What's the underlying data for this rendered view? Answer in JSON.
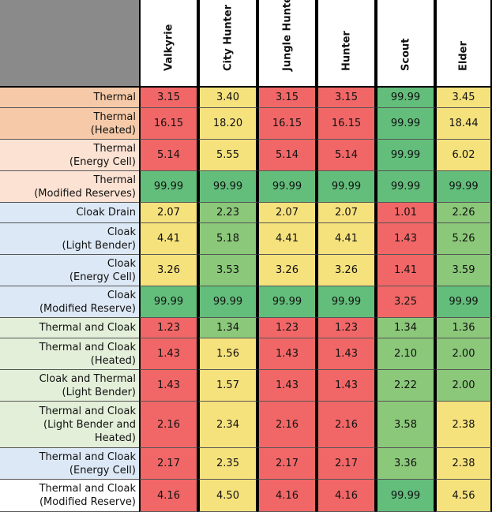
{
  "chart_data": {
    "type": "table",
    "columns": [
      "Valkyrie",
      "City Hunter",
      "Jungle Hunter",
      "Hunter",
      "Scout",
      "Elder"
    ],
    "rows": [
      {
        "label": [
          "Thermal"
        ],
        "values": [
          "3.15",
          "3.40",
          "3.15",
          "3.15",
          "99.99",
          "3.45"
        ],
        "group": "thermal"
      },
      {
        "label": [
          "Thermal",
          "(Heated)"
        ],
        "values": [
          "16.15",
          "18.20",
          "16.15",
          "16.15",
          "99.99",
          "18.44"
        ],
        "group": "thermal"
      },
      {
        "label": [
          "Thermal",
          "(Energy Cell)"
        ],
        "values": [
          "5.14",
          "5.55",
          "5.14",
          "5.14",
          "99.99",
          "6.02"
        ],
        "group": "thermal-light"
      },
      {
        "label": [
          "Thermal",
          "(Modified Reserves)"
        ],
        "values": [
          "99.99",
          "99.99",
          "99.99",
          "99.99",
          "99.99",
          "99.99"
        ],
        "group": "thermal-light"
      },
      {
        "label": [
          "Cloak Drain"
        ],
        "values": [
          "2.07",
          "2.23",
          "2.07",
          "2.07",
          "1.01",
          "2.26"
        ],
        "group": "cloak"
      },
      {
        "label": [
          "Cloak",
          "(Light Bender)"
        ],
        "values": [
          "4.41",
          "5.18",
          "4.41",
          "4.41",
          "1.43",
          "5.26"
        ],
        "group": "cloak"
      },
      {
        "label": [
          "Cloak",
          "(Energy Cell)"
        ],
        "values": [
          "3.26",
          "3.53",
          "3.26",
          "3.26",
          "1.41",
          "3.59"
        ],
        "group": "cloak"
      },
      {
        "label": [
          "Cloak",
          "(Modified Reserve)"
        ],
        "values": [
          "99.99",
          "99.99",
          "99.99",
          "99.99",
          "3.25",
          "99.99"
        ],
        "group": "cloak"
      },
      {
        "label": [
          "Thermal and Cloak"
        ],
        "values": [
          "1.23",
          "1.34",
          "1.23",
          "1.23",
          "1.34",
          "1.36"
        ],
        "group": "both"
      },
      {
        "label": [
          "Thermal and Cloak",
          "(Heated)"
        ],
        "values": [
          "1.43",
          "1.56",
          "1.43",
          "1.43",
          "2.10",
          "2.00"
        ],
        "group": "both"
      },
      {
        "label": [
          "Cloak and Thermal",
          "(Light Bender)"
        ],
        "values": [
          "1.43",
          "1.57",
          "1.43",
          "1.43",
          "2.22",
          "2.00"
        ],
        "group": "both"
      },
      {
        "label": [
          "Thermal and Cloak",
          "(Light Bender and",
          "Heated)"
        ],
        "values": [
          "2.16",
          "2.34",
          "2.16",
          "2.16",
          "3.58",
          "2.38"
        ],
        "group": "both"
      },
      {
        "label": [
          "Thermal and Cloak",
          "(Energy Cell)"
        ],
        "values": [
          "2.17",
          "2.35",
          "2.17",
          "2.17",
          "3.36",
          "2.38"
        ],
        "group": "cloak"
      },
      {
        "label": [
          "Thermal and Cloak",
          "(Modified Reserve)"
        ],
        "values": [
          "4.16",
          "4.50",
          "4.16",
          "4.16",
          "99.99",
          "4.56"
        ],
        "group": "white"
      }
    ],
    "cell_colors": [
      [
        "red",
        "yellow",
        "red",
        "red",
        "green",
        "yellow"
      ],
      [
        "red",
        "yellow",
        "red",
        "red",
        "green",
        "yellow"
      ],
      [
        "red",
        "yellow",
        "red",
        "red",
        "green",
        "yellow"
      ],
      [
        "green",
        "green",
        "green",
        "green",
        "green",
        "green"
      ],
      [
        "yellow",
        "lgreen",
        "yellow",
        "yellow",
        "red",
        "lgreen"
      ],
      [
        "yellow",
        "lgreen",
        "yellow",
        "yellow",
        "red",
        "lgreen"
      ],
      [
        "yellow",
        "lgreen",
        "yellow",
        "yellow",
        "red",
        "lgreen"
      ],
      [
        "green",
        "green",
        "green",
        "green",
        "red",
        "green"
      ],
      [
        "red",
        "lgreen",
        "red",
        "red",
        "lgreen",
        "lgreen"
      ],
      [
        "red",
        "yellow",
        "red",
        "red",
        "lgreen",
        "lgreen"
      ],
      [
        "red",
        "yellow",
        "red",
        "red",
        "lgreen",
        "lgreen"
      ],
      [
        "red",
        "yellow",
        "red",
        "red",
        "lgreen",
        "yellow"
      ],
      [
        "red",
        "yellow",
        "red",
        "red",
        "lgreen",
        "yellow"
      ],
      [
        "red",
        "yellow",
        "red",
        "red",
        "green",
        "yellow"
      ]
    ],
    "palette": {
      "red": "#f16767",
      "yellow": "#f6e27d",
      "green": "#63be7b",
      "lgreen": "#8bc87a",
      "thermal": "#f6caa8",
      "thermal-light": "#fce2d3",
      "cloak": "#dce8f5",
      "both": "#e3efd9",
      "white": "#ffffff"
    }
  }
}
